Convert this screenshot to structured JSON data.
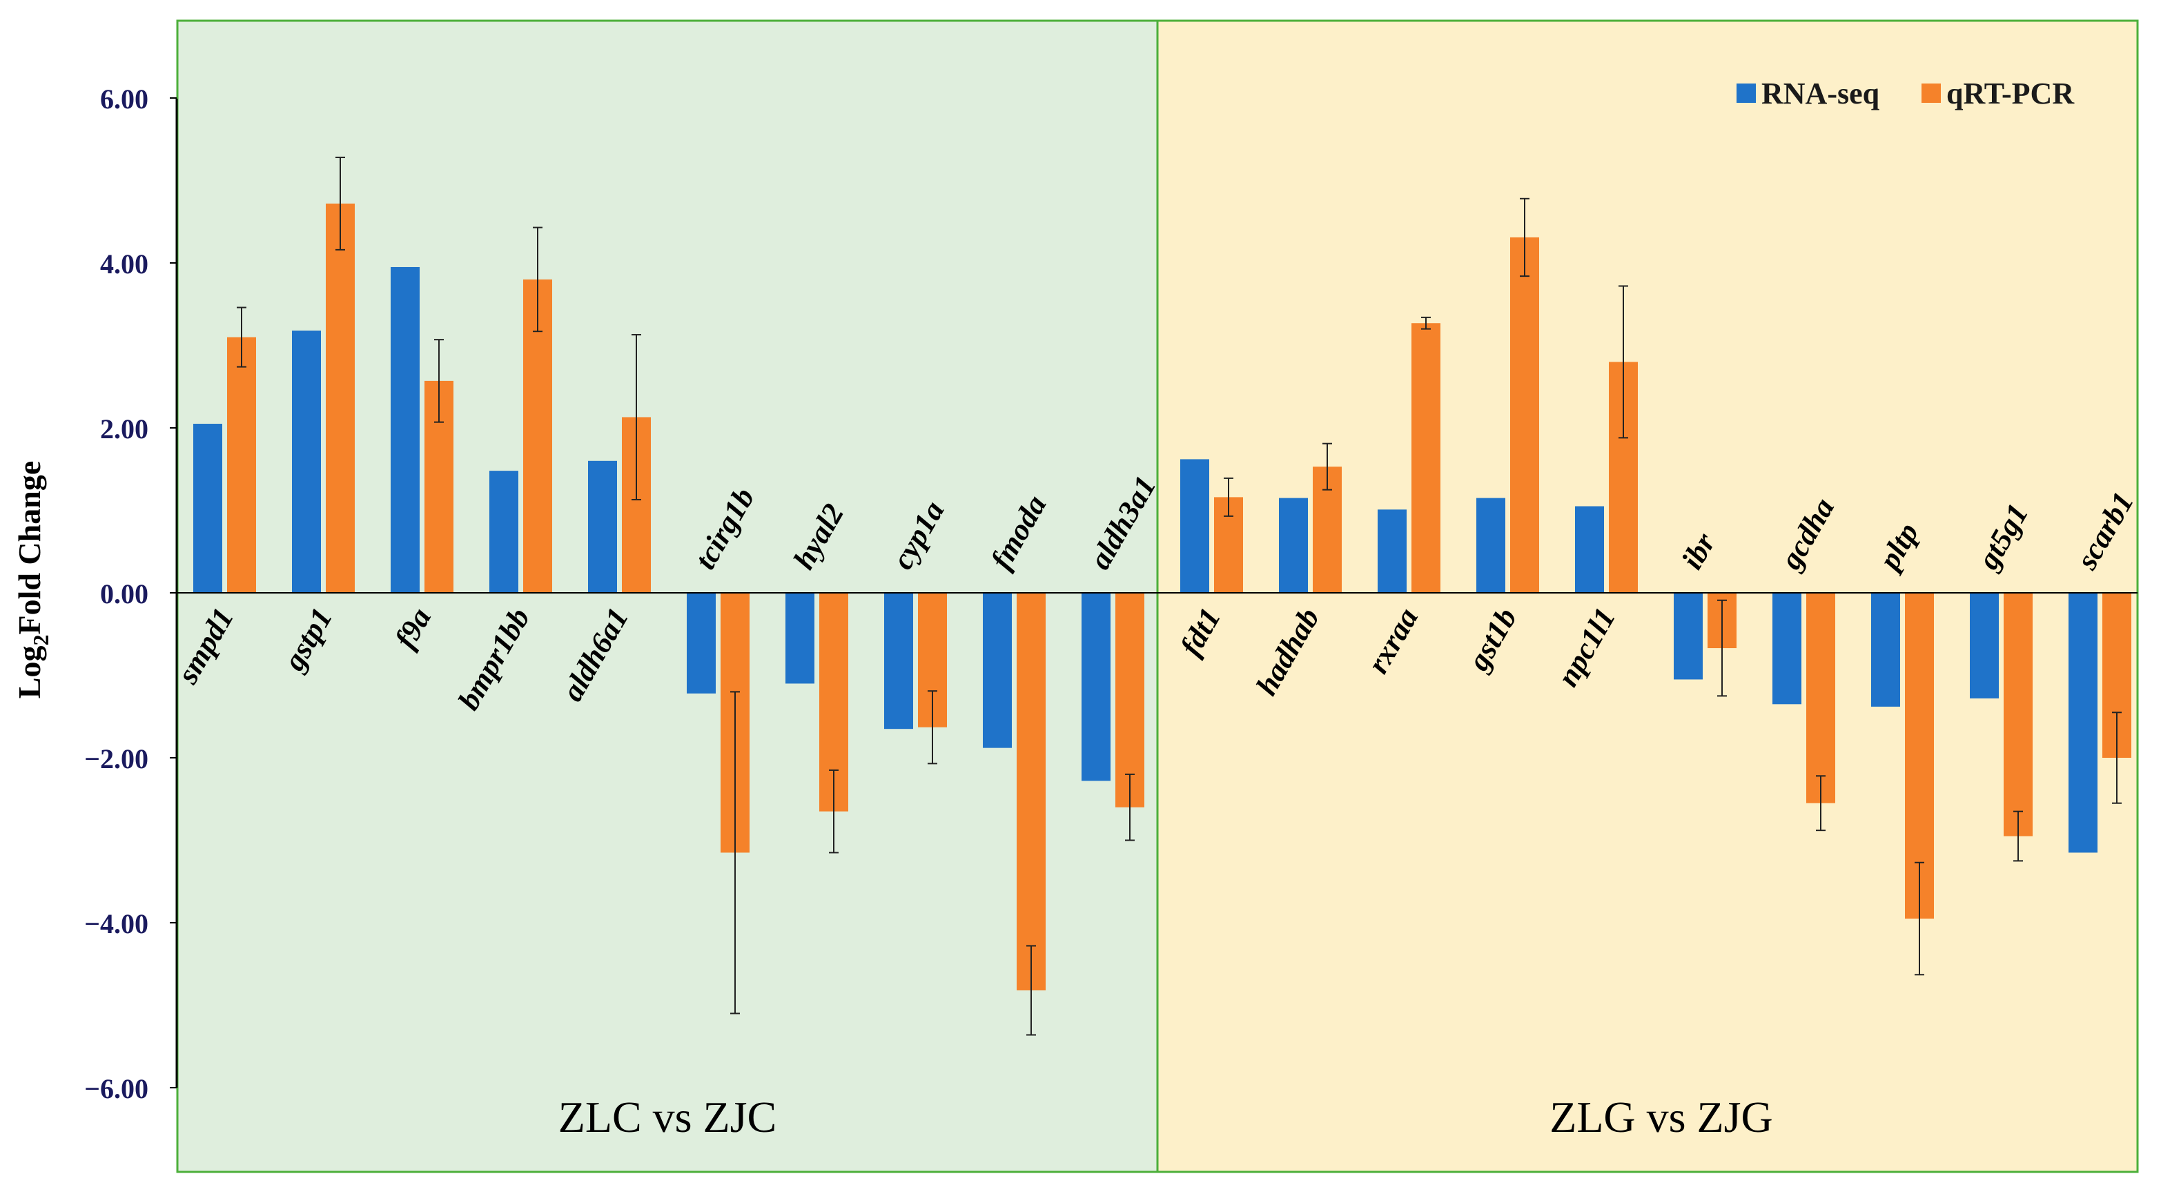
{
  "chart_data": {
    "type": "bar",
    "ylabel": "Log2Fold Change",
    "ylabel_main": "Log",
    "ylabel_sub": "2",
    "ylabel_rest": "Fold Change",
    "ylim": [
      -7.0,
      7.0
    ],
    "yticks": [
      6,
      4,
      2,
      0,
      -2,
      -4,
      -6
    ],
    "ytick_labels": [
      "6.00",
      "4.00",
      "2.00",
      "0.00",
      "−2.00",
      "−4.00",
      "−6.00"
    ],
    "legend": [
      "RNA-seq",
      "qRT-PCR"
    ],
    "colors": {
      "rna": "#1f73c9",
      "qrt": "#f5822a",
      "panel_left": "#dfeedd",
      "panel_right": "#fdf0c9",
      "panel_border": "#4caf3a",
      "tick_label": "#1a1a5e"
    },
    "panels": [
      {
        "title": "ZLC vs ZJC",
        "genes": [
          "smpd1",
          "gstp1",
          "f9a",
          "bmpr1bb",
          "aldh6a1",
          "tcirg1b",
          "hyal2",
          "cyp1a",
          "fmoda",
          "aldh3a1"
        ],
        "rna_seq": [
          2.05,
          3.18,
          3.95,
          1.48,
          1.6,
          -1.22,
          -1.1,
          -1.65,
          -1.88,
          -2.28
        ],
        "qrt_pcr": [
          3.1,
          4.72,
          2.57,
          3.8,
          2.13,
          -3.15,
          -2.65,
          -1.63,
          -4.82,
          -2.6
        ],
        "qrt_err": [
          0.36,
          0.56,
          0.5,
          0.63,
          1.0,
          1.95,
          0.5,
          0.44,
          0.54,
          0.4
        ]
      },
      {
        "title": "ZLG vs ZJG",
        "genes": [
          "fdt1",
          "hadhab",
          "rxraa",
          "gst1b",
          "npc1l1",
          "ibr",
          "gcdha",
          "pltp",
          "gt5g1",
          "scarb1"
        ],
        "rna_seq": [
          1.62,
          1.15,
          1.01,
          1.15,
          1.05,
          -1.05,
          -1.35,
          -1.38,
          -1.28,
          -3.15
        ],
        "qrt_pcr": [
          1.16,
          1.53,
          3.27,
          4.31,
          2.8,
          -0.67,
          -2.55,
          -3.95,
          -2.95,
          -2.0
        ],
        "qrt_err": [
          0.23,
          0.28,
          0.07,
          0.47,
          0.92,
          0.58,
          0.33,
          0.68,
          0.3,
          0.55
        ]
      }
    ]
  }
}
